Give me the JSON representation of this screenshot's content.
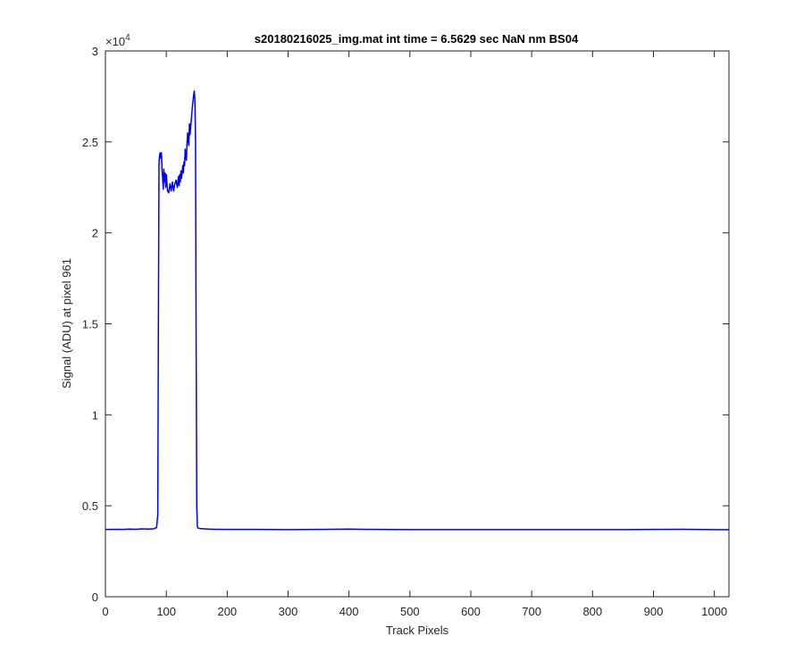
{
  "chart_data": {
    "type": "line",
    "title": "s20180216025_img.mat int time = 6.5629 sec  NaN nm BS04",
    "xlabel": "Track Pixels",
    "ylabel": "Signal (ADU) at pixel 961",
    "xlim": [
      0,
      1024
    ],
    "ylim": [
      0,
      30000
    ],
    "x_ticks": [
      0,
      100,
      200,
      300,
      400,
      500,
      600,
      700,
      800,
      900,
      1000
    ],
    "x_tick_labels": [
      "0",
      "100",
      "200",
      "300",
      "400",
      "500",
      "600",
      "700",
      "800",
      "900",
      "1000"
    ],
    "y_ticks": [
      0,
      5000,
      10000,
      15000,
      20000,
      25000,
      30000
    ],
    "y_tick_labels": [
      "0",
      "0.5",
      "1",
      "1.5",
      "2",
      "2.5",
      "3"
    ],
    "y_exponent_label": "×10",
    "y_exponent_power": "4",
    "grid": false,
    "line_color": "#0000ff",
    "series": [
      {
        "x": [
          0,
          10,
          20,
          30,
          40,
          50,
          60,
          70,
          80,
          84,
          86,
          87,
          88,
          89,
          90,
          91,
          92,
          93,
          94,
          95,
          96,
          97,
          98,
          99,
          100,
          102,
          104,
          106,
          108,
          110,
          112,
          114,
          116,
          118,
          120,
          121,
          122,
          123,
          124,
          125,
          126,
          127,
          128,
          129,
          130,
          131,
          132,
          133,
          134,
          135,
          136,
          137,
          138,
          139,
          140,
          141,
          142,
          143,
          144,
          145,
          146,
          147,
          148,
          149,
          150,
          151,
          152,
          153,
          155,
          160,
          170,
          180,
          200,
          250,
          300,
          350,
          400,
          420,
          450,
          500,
          550,
          600,
          650,
          700,
          750,
          800,
          850,
          900,
          950,
          1000,
          1024
        ],
        "values": [
          3700,
          3700,
          3710,
          3700,
          3720,
          3710,
          3730,
          3720,
          3740,
          3800,
          4500,
          15000,
          23800,
          24300,
          24400,
          24100,
          24400,
          23500,
          23000,
          22400,
          23500,
          22800,
          23300,
          22500,
          23200,
          22300,
          22200,
          22700,
          22300,
          22800,
          22300,
          22700,
          22900,
          22500,
          23100,
          22600,
          23200,
          22800,
          23400,
          23000,
          23300,
          23700,
          23300,
          23900,
          23700,
          24600,
          24200,
          24000,
          24900,
          25500,
          25100,
          24800,
          26000,
          25400,
          25800,
          26200,
          26600,
          27000,
          27300,
          27600,
          27800,
          27200,
          25000,
          14000,
          5000,
          3850,
          3780,
          3760,
          3750,
          3740,
          3720,
          3710,
          3700,
          3700,
          3690,
          3700,
          3720,
          3710,
          3700,
          3690,
          3690,
          3690,
          3690,
          3690,
          3690,
          3690,
          3690,
          3700,
          3710,
          3690,
          3680
        ]
      }
    ]
  }
}
